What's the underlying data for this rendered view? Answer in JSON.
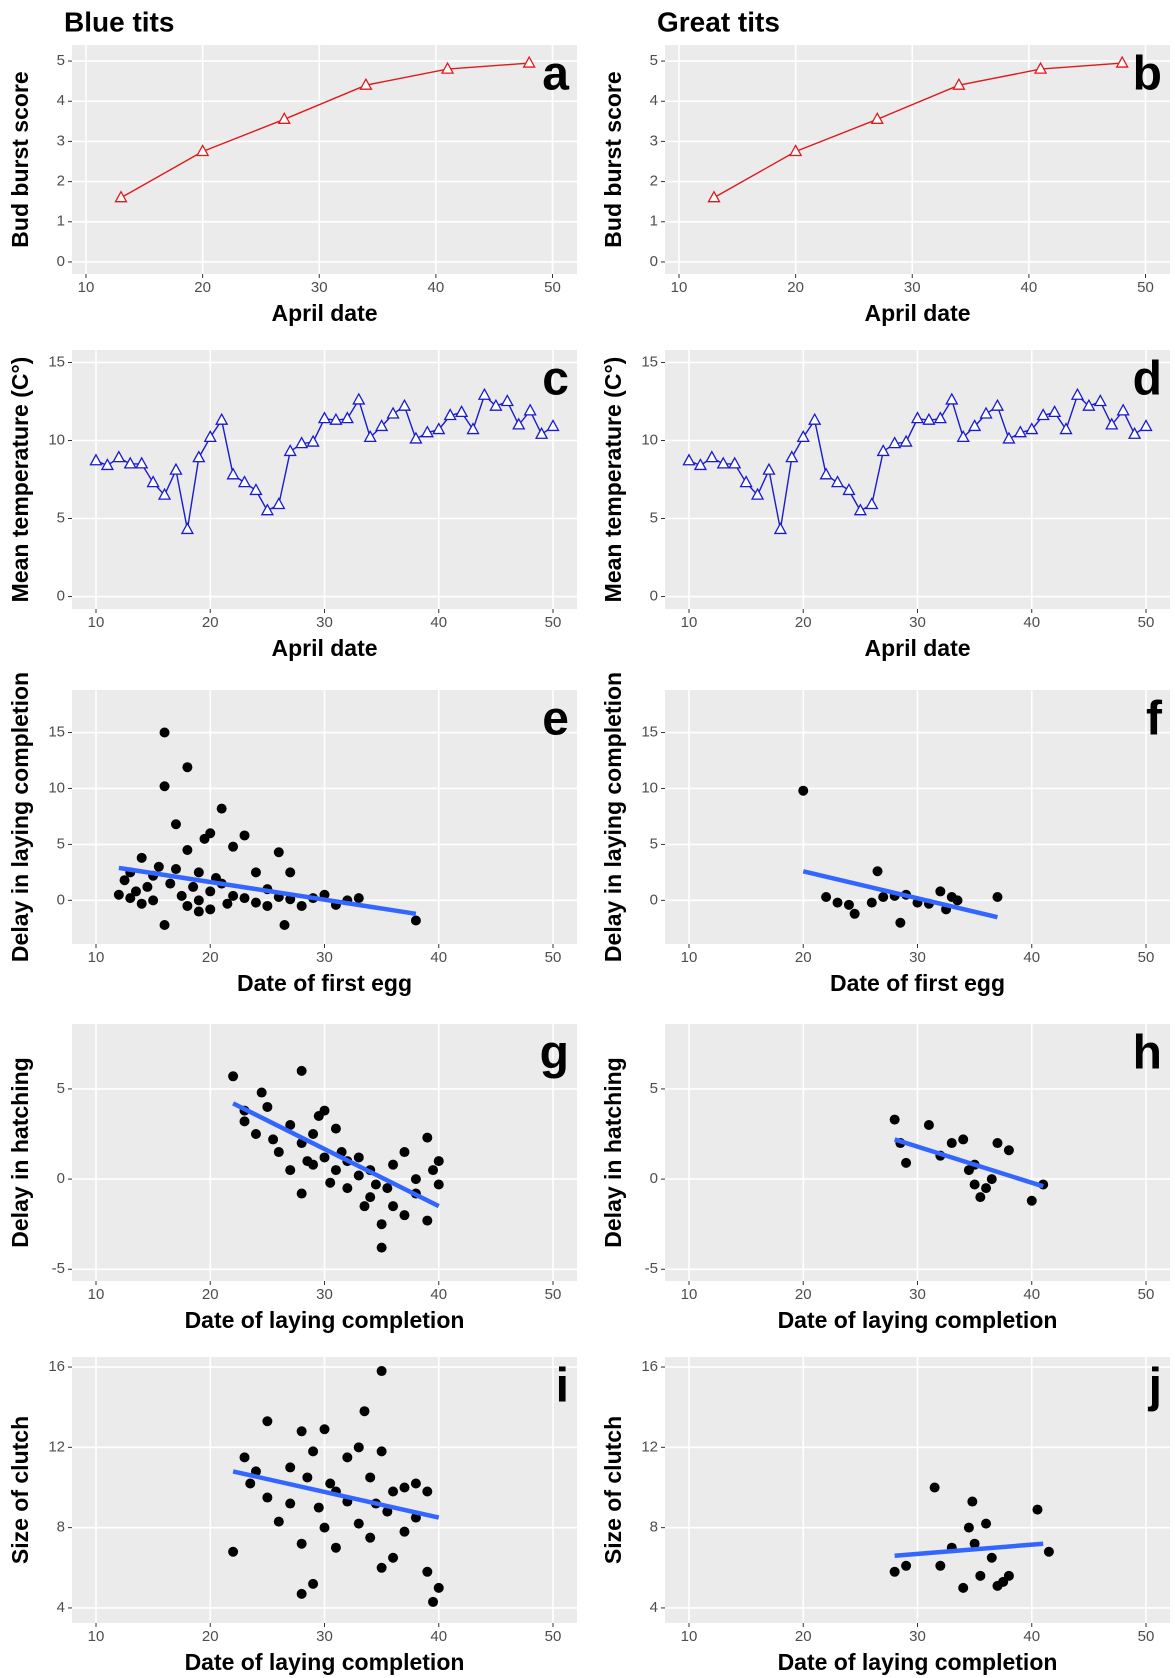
{
  "chart_data": [
    {
      "type": "line",
      "title": "Blue tits",
      "annotation": "a",
      "xlabel": "April date",
      "ylabel": "Bud burst score",
      "xlim": [
        8.8,
        52.1
      ],
      "xticks": [
        10,
        20,
        30,
        40,
        50
      ],
      "ylim": [
        -0.3,
        5.4
      ],
      "yticks": [
        0,
        1,
        2,
        3,
        4,
        5
      ],
      "grid": true,
      "series": [
        {
          "color": "#e0191b",
          "marker": "triangle",
          "x": [
            13,
            20,
            27,
            34,
            41,
            48
          ],
          "values": [
            1.6,
            2.75,
            3.55,
            4.4,
            4.8,
            4.95
          ]
        }
      ]
    },
    {
      "type": "line",
      "title": "Great tits",
      "annotation": "b",
      "xlabel": "April date",
      "ylabel": "Bud burst score",
      "xlim": [
        8.8,
        52.1
      ],
      "xticks": [
        10,
        20,
        30,
        40,
        50
      ],
      "ylim": [
        -0.3,
        5.4
      ],
      "yticks": [
        0,
        1,
        2,
        3,
        4,
        5
      ],
      "grid": true,
      "series": [
        {
          "color": "#e0191b",
          "marker": "triangle",
          "x": [
            13,
            20,
            27,
            34,
            41,
            48
          ],
          "values": [
            1.6,
            2.75,
            3.55,
            4.4,
            4.8,
            4.95
          ]
        }
      ]
    },
    {
      "type": "line",
      "annotation": "c",
      "xlabel": "April date",
      "ylabel": "Mean temperature (C°)",
      "xlim": [
        7.9,
        52.1
      ],
      "xticks": [
        10,
        20,
        30,
        40,
        50
      ],
      "ylim": [
        -0.8,
        15.8
      ],
      "yticks": [
        0,
        5,
        10,
        15
      ],
      "grid": true,
      "series": [
        {
          "color": "#1a1ad0",
          "marker": "triangle",
          "x": [
            10,
            11,
            12,
            13,
            14,
            15,
            16,
            17,
            18,
            19,
            20,
            21,
            22,
            23,
            24,
            25,
            26,
            27,
            28,
            29,
            30,
            31,
            32,
            33,
            34,
            35,
            36,
            37,
            38,
            39,
            40,
            41,
            42,
            43,
            44,
            45,
            46,
            47,
            48,
            49,
            50
          ],
          "values": [
            8.7,
            8.4,
            8.9,
            8.5,
            8.5,
            7.3,
            6.5,
            8.1,
            4.3,
            8.9,
            10.2,
            11.3,
            7.8,
            7.3,
            6.8,
            5.5,
            5.9,
            9.3,
            9.8,
            9.9,
            11.4,
            11.3,
            11.4,
            12.6,
            10.2,
            10.9,
            11.7,
            12.2,
            10.1,
            10.5,
            10.7,
            11.6,
            11.8,
            10.7,
            12.9,
            12.2,
            12.5,
            11.0,
            11.9,
            10.4,
            10.9
          ]
        }
      ]
    },
    {
      "type": "line",
      "annotation": "d",
      "xlabel": "April date",
      "ylabel": "Mean temperature (C°)",
      "xlim": [
        7.9,
        52.1
      ],
      "xticks": [
        10,
        20,
        30,
        40,
        50
      ],
      "ylim": [
        -0.8,
        15.8
      ],
      "yticks": [
        0,
        5,
        10,
        15
      ],
      "grid": true,
      "series": [
        {
          "color": "#1a1ad0",
          "marker": "triangle",
          "x": [
            10,
            11,
            12,
            13,
            14,
            15,
            16,
            17,
            18,
            19,
            20,
            21,
            22,
            23,
            24,
            25,
            26,
            27,
            28,
            29,
            30,
            31,
            32,
            33,
            34,
            35,
            36,
            37,
            38,
            39,
            40,
            41,
            42,
            43,
            44,
            45,
            46,
            47,
            48,
            49,
            50
          ],
          "values": [
            8.7,
            8.4,
            8.9,
            8.5,
            8.5,
            7.3,
            6.5,
            8.1,
            4.3,
            8.9,
            10.2,
            11.3,
            7.8,
            7.3,
            6.8,
            5.5,
            5.9,
            9.3,
            9.8,
            9.9,
            11.4,
            11.3,
            11.4,
            12.6,
            10.2,
            10.9,
            11.7,
            12.2,
            10.1,
            10.5,
            10.7,
            11.6,
            11.8,
            10.7,
            12.9,
            12.2,
            12.5,
            11.0,
            11.9,
            10.4,
            10.9
          ]
        }
      ]
    },
    {
      "type": "scatter",
      "annotation": "e",
      "xlabel": "Date of first egg",
      "ylabel": "Delay in laying completion",
      "xlim": [
        7.9,
        52.1
      ],
      "xticks": [
        10,
        20,
        30,
        40,
        50
      ],
      "ylim": [
        -3.9,
        18.8
      ],
      "yticks": [
        0,
        5,
        10,
        15
      ],
      "grid": true,
      "series": [
        {
          "color": "#000000",
          "x": [
            12,
            12.5,
            13,
            13,
            13.5,
            14,
            14,
            14.5,
            15,
            15,
            15.5,
            16,
            16,
            16,
            16.5,
            17,
            17,
            17.5,
            18,
            18,
            18,
            18.5,
            19,
            19,
            19,
            19.5,
            20,
            20,
            20,
            20.5,
            21,
            21,
            21.5,
            22,
            22,
            23,
            23,
            24,
            24,
            25,
            25,
            26,
            26,
            26.5,
            27,
            27,
            28,
            29,
            30,
            31,
            32,
            33,
            38
          ],
          "values": [
            0.5,
            1.8,
            0.2,
            2.5,
            0.8,
            3.8,
            -0.3,
            1.2,
            2.2,
            0,
            3,
            15,
            10.2,
            -2.2,
            1.5,
            6.8,
            2.8,
            0.4,
            11.9,
            4.5,
            -0.5,
            1.2,
            2.5,
            0,
            -1,
            5.5,
            6,
            0.8,
            -0.8,
            2,
            8.2,
            1.5,
            -0.3,
            4.8,
            0.4,
            5.8,
            0.2,
            2.5,
            -0.2,
            1,
            -0.5,
            4.3,
            0.3,
            -2.2,
            2.5,
            0.1,
            -0.5,
            0.2,
            0.5,
            -0.4,
            0,
            0.2,
            -1.8
          ]
        }
      ],
      "fit": {
        "color": "#3366ff",
        "x": [
          12,
          38
        ],
        "values": [
          2.9,
          -1.2
        ]
      }
    },
    {
      "type": "scatter",
      "annotation": "f",
      "xlabel": "Date of first egg",
      "ylabel": "Delay in laying completion",
      "xlim": [
        7.9,
        52.1
      ],
      "xticks": [
        10,
        20,
        30,
        40,
        50
      ],
      "ylim": [
        -3.9,
        18.8
      ],
      "yticks": [
        0,
        5,
        10,
        15
      ],
      "grid": true,
      "series": [
        {
          "color": "#000000",
          "x": [
            20,
            22,
            23,
            24,
            24.5,
            26,
            26.5,
            27,
            28,
            28.5,
            29,
            30,
            31,
            32,
            32.5,
            33,
            33.5,
            37
          ],
          "values": [
            9.8,
            0.3,
            -0.2,
            -0.4,
            -1.2,
            -0.2,
            2.6,
            0.3,
            0.4,
            -2,
            0.5,
            -0.2,
            -0.3,
            0.8,
            -0.8,
            0.3,
            0,
            0.3
          ]
        }
      ],
      "fit": {
        "color": "#3366ff",
        "x": [
          20,
          37
        ],
        "values": [
          2.6,
          -1.5
        ]
      }
    },
    {
      "type": "scatter",
      "annotation": "g",
      "xlabel": "Date of laying completion",
      "ylabel": "Delay in hatching",
      "xlim": [
        7.9,
        52.1
      ],
      "xticks": [
        10,
        20,
        30,
        40,
        50
      ],
      "ylim": [
        -5.65,
        8.6
      ],
      "yticks": [
        -5,
        0,
        5
      ],
      "grid": true,
      "series": [
        {
          "color": "#000000",
          "x": [
            22,
            23,
            23,
            24,
            24.5,
            25,
            25.5,
            26,
            27,
            27,
            28,
            28,
            28,
            28.5,
            29,
            29,
            29.5,
            30,
            30,
            30.5,
            31,
            31,
            31.5,
            32,
            32,
            33,
            33,
            33.5,
            34,
            34,
            34.5,
            35,
            35,
            35.5,
            36,
            36,
            37,
            37,
            38,
            38,
            39,
            39,
            39.5,
            40,
            40
          ],
          "values": [
            5.7,
            3.2,
            3.8,
            2.5,
            4.8,
            4,
            2.2,
            1.5,
            3,
            0.5,
            6,
            2,
            -0.8,
            1,
            2.5,
            0.8,
            3.5,
            3.8,
            1.2,
            -0.2,
            2.8,
            0.5,
            1.5,
            1,
            -0.5,
            0.2,
            1.2,
            -1.5,
            0.5,
            -1,
            -0.3,
            -2.5,
            -3.8,
            -0.5,
            0.8,
            -1.5,
            -2,
            1.5,
            0,
            -0.8,
            2.3,
            -2.3,
            0.5,
            1,
            -0.3
          ]
        }
      ],
      "fit": {
        "color": "#3366ff",
        "x": [
          22,
          40
        ],
        "values": [
          4.2,
          -1.5
        ]
      }
    },
    {
      "type": "scatter",
      "annotation": "h",
      "xlabel": "Date of laying completion",
      "ylabel": "Delay in hatching",
      "xlim": [
        7.9,
        52.1
      ],
      "xticks": [
        10,
        20,
        30,
        40,
        50
      ],
      "ylim": [
        -5.65,
        8.6
      ],
      "yticks": [
        -5,
        0,
        5
      ],
      "grid": true,
      "series": [
        {
          "color": "#000000",
          "x": [
            28,
            28.5,
            29,
            31,
            32,
            33,
            34,
            34.5,
            35,
            35,
            35.5,
            36,
            36.5,
            37,
            38,
            40,
            41
          ],
          "values": [
            3.3,
            2,
            0.9,
            3,
            1.3,
            2,
            2.2,
            0.5,
            -0.3,
            0.8,
            -1,
            -0.5,
            0,
            2,
            1.6,
            -1.2,
            -0.3
          ]
        }
      ],
      "fit": {
        "color": "#3366ff",
        "x": [
          28,
          41
        ],
        "values": [
          2.2,
          -0.4
        ]
      }
    },
    {
      "type": "scatter",
      "annotation": "i",
      "xlabel": "Date of laying completion",
      "ylabel": "Size of clutch",
      "xlim": [
        7.9,
        52.1
      ],
      "xticks": [
        10,
        20,
        30,
        40,
        50
      ],
      "ylim": [
        3.25,
        16.5
      ],
      "yticks": [
        4,
        8,
        12,
        16
      ],
      "grid": true,
      "series": [
        {
          "color": "#000000",
          "x": [
            22,
            23,
            23.5,
            24,
            25,
            25,
            26,
            27,
            27,
            28,
            28,
            28,
            28.5,
            29,
            29,
            29.5,
            30,
            30,
            30.5,
            31,
            31,
            32,
            32,
            33,
            33,
            33.5,
            34,
            34,
            34.5,
            35,
            35,
            35,
            35.5,
            36,
            36,
            37,
            37,
            38,
            38,
            39,
            39,
            39.5,
            40
          ],
          "values": [
            6.8,
            11.5,
            10.2,
            10.8,
            13.3,
            9.5,
            8.3,
            11,
            9.2,
            12.8,
            4.7,
            7.2,
            10.5,
            11.8,
            5.2,
            9,
            12.9,
            8,
            10.2,
            9.8,
            7,
            11.5,
            9.3,
            12,
            8.2,
            13.8,
            10.5,
            7.5,
            9.2,
            15.8,
            6,
            11.8,
            8.8,
            9.8,
            6.5,
            10,
            7.8,
            8.5,
            10.2,
            5.8,
            9.8,
            4.3,
            5
          ]
        }
      ],
      "fit": {
        "color": "#3366ff",
        "x": [
          22,
          40
        ],
        "values": [
          10.8,
          8.5
        ]
      }
    },
    {
      "type": "scatter",
      "annotation": "j",
      "xlabel": "Date of laying completion",
      "ylabel": "Size of clutch",
      "xlim": [
        7.9,
        52.1
      ],
      "xticks": [
        10,
        20,
        30,
        40,
        50
      ],
      "ylim": [
        3.25,
        16.5
      ],
      "yticks": [
        4,
        8,
        12,
        16
      ],
      "grid": true,
      "series": [
        {
          "color": "#000000",
          "x": [
            28,
            29,
            31.5,
            32,
            33,
            34,
            34.5,
            34.8,
            35,
            35.5,
            36,
            36.5,
            37,
            37.5,
            38,
            40.5,
            41.5
          ],
          "values": [
            5.8,
            6.1,
            10,
            6.1,
            7,
            5,
            8,
            9.3,
            7.2,
            5.6,
            8.2,
            6.5,
            5.1,
            5.3,
            5.6,
            8.9,
            6.8
          ]
        }
      ],
      "fit": {
        "color": "#3366ff",
        "x": [
          28,
          41
        ],
        "values": [
          6.6,
          7.2
        ]
      }
    }
  ]
}
